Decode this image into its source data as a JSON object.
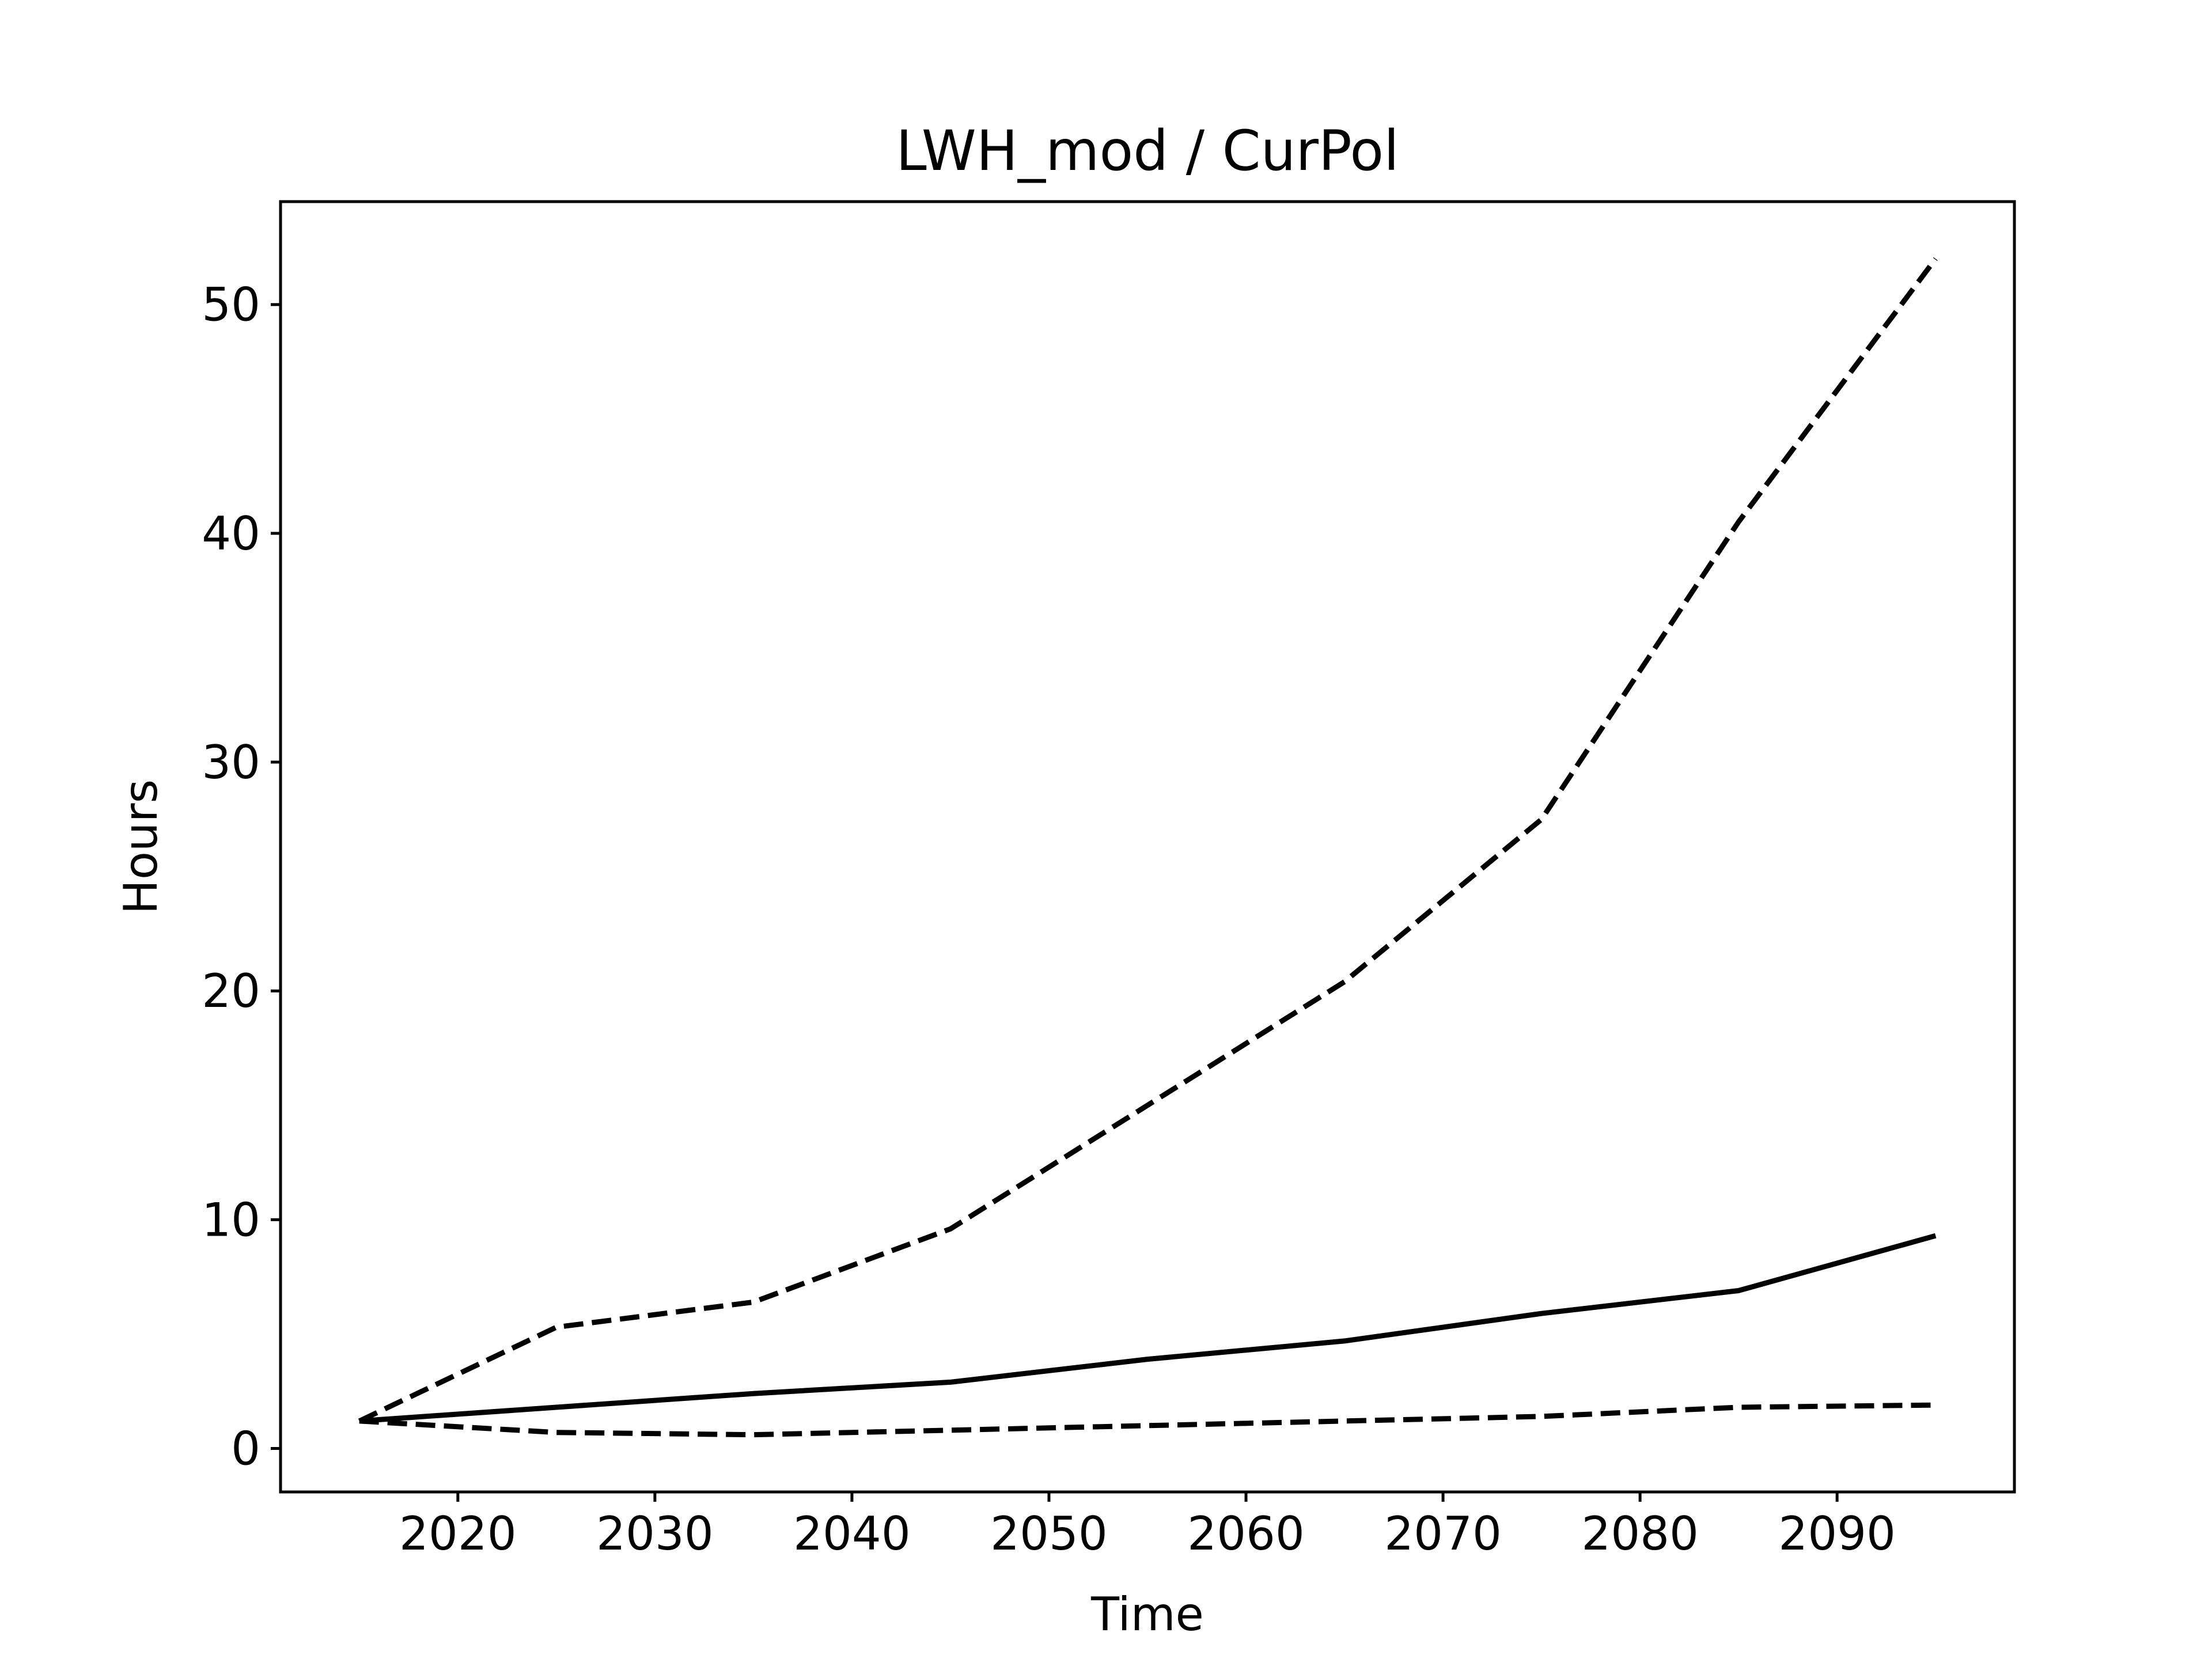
{
  "chart_data": {
    "type": "line",
    "title": "LWH_mod / CurPol",
    "xlabel": "Time",
    "ylabel": "Hours",
    "xlim": [
      2011,
      2099
    ],
    "ylim": [
      -1.9,
      54.5
    ],
    "xticks": [
      2020,
      2030,
      2040,
      2050,
      2060,
      2070,
      2080,
      2090
    ],
    "yticks": [
      0,
      10,
      20,
      30,
      40,
      50
    ],
    "grid": false,
    "legend": "none",
    "x": [
      2015,
      2025,
      2035,
      2045,
      2055,
      2065,
      2075,
      2085,
      2095
    ],
    "series": [
      {
        "style": "dashed",
        "color": "#000000",
        "values": [
          1.2,
          5.3,
          6.4,
          9.6,
          15.0,
          20.4,
          27.5,
          40.5,
          52.0
        ]
      },
      {
        "style": "solid",
        "color": "#000000",
        "values": [
          1.2,
          1.8,
          2.4,
          2.9,
          3.9,
          4.7,
          5.9,
          6.9,
          9.3
        ]
      },
      {
        "style": "dashed",
        "color": "#000000",
        "values": [
          1.2,
          0.7,
          0.6,
          0.8,
          1.0,
          1.2,
          1.4,
          1.8,
          1.9
        ]
      }
    ]
  }
}
